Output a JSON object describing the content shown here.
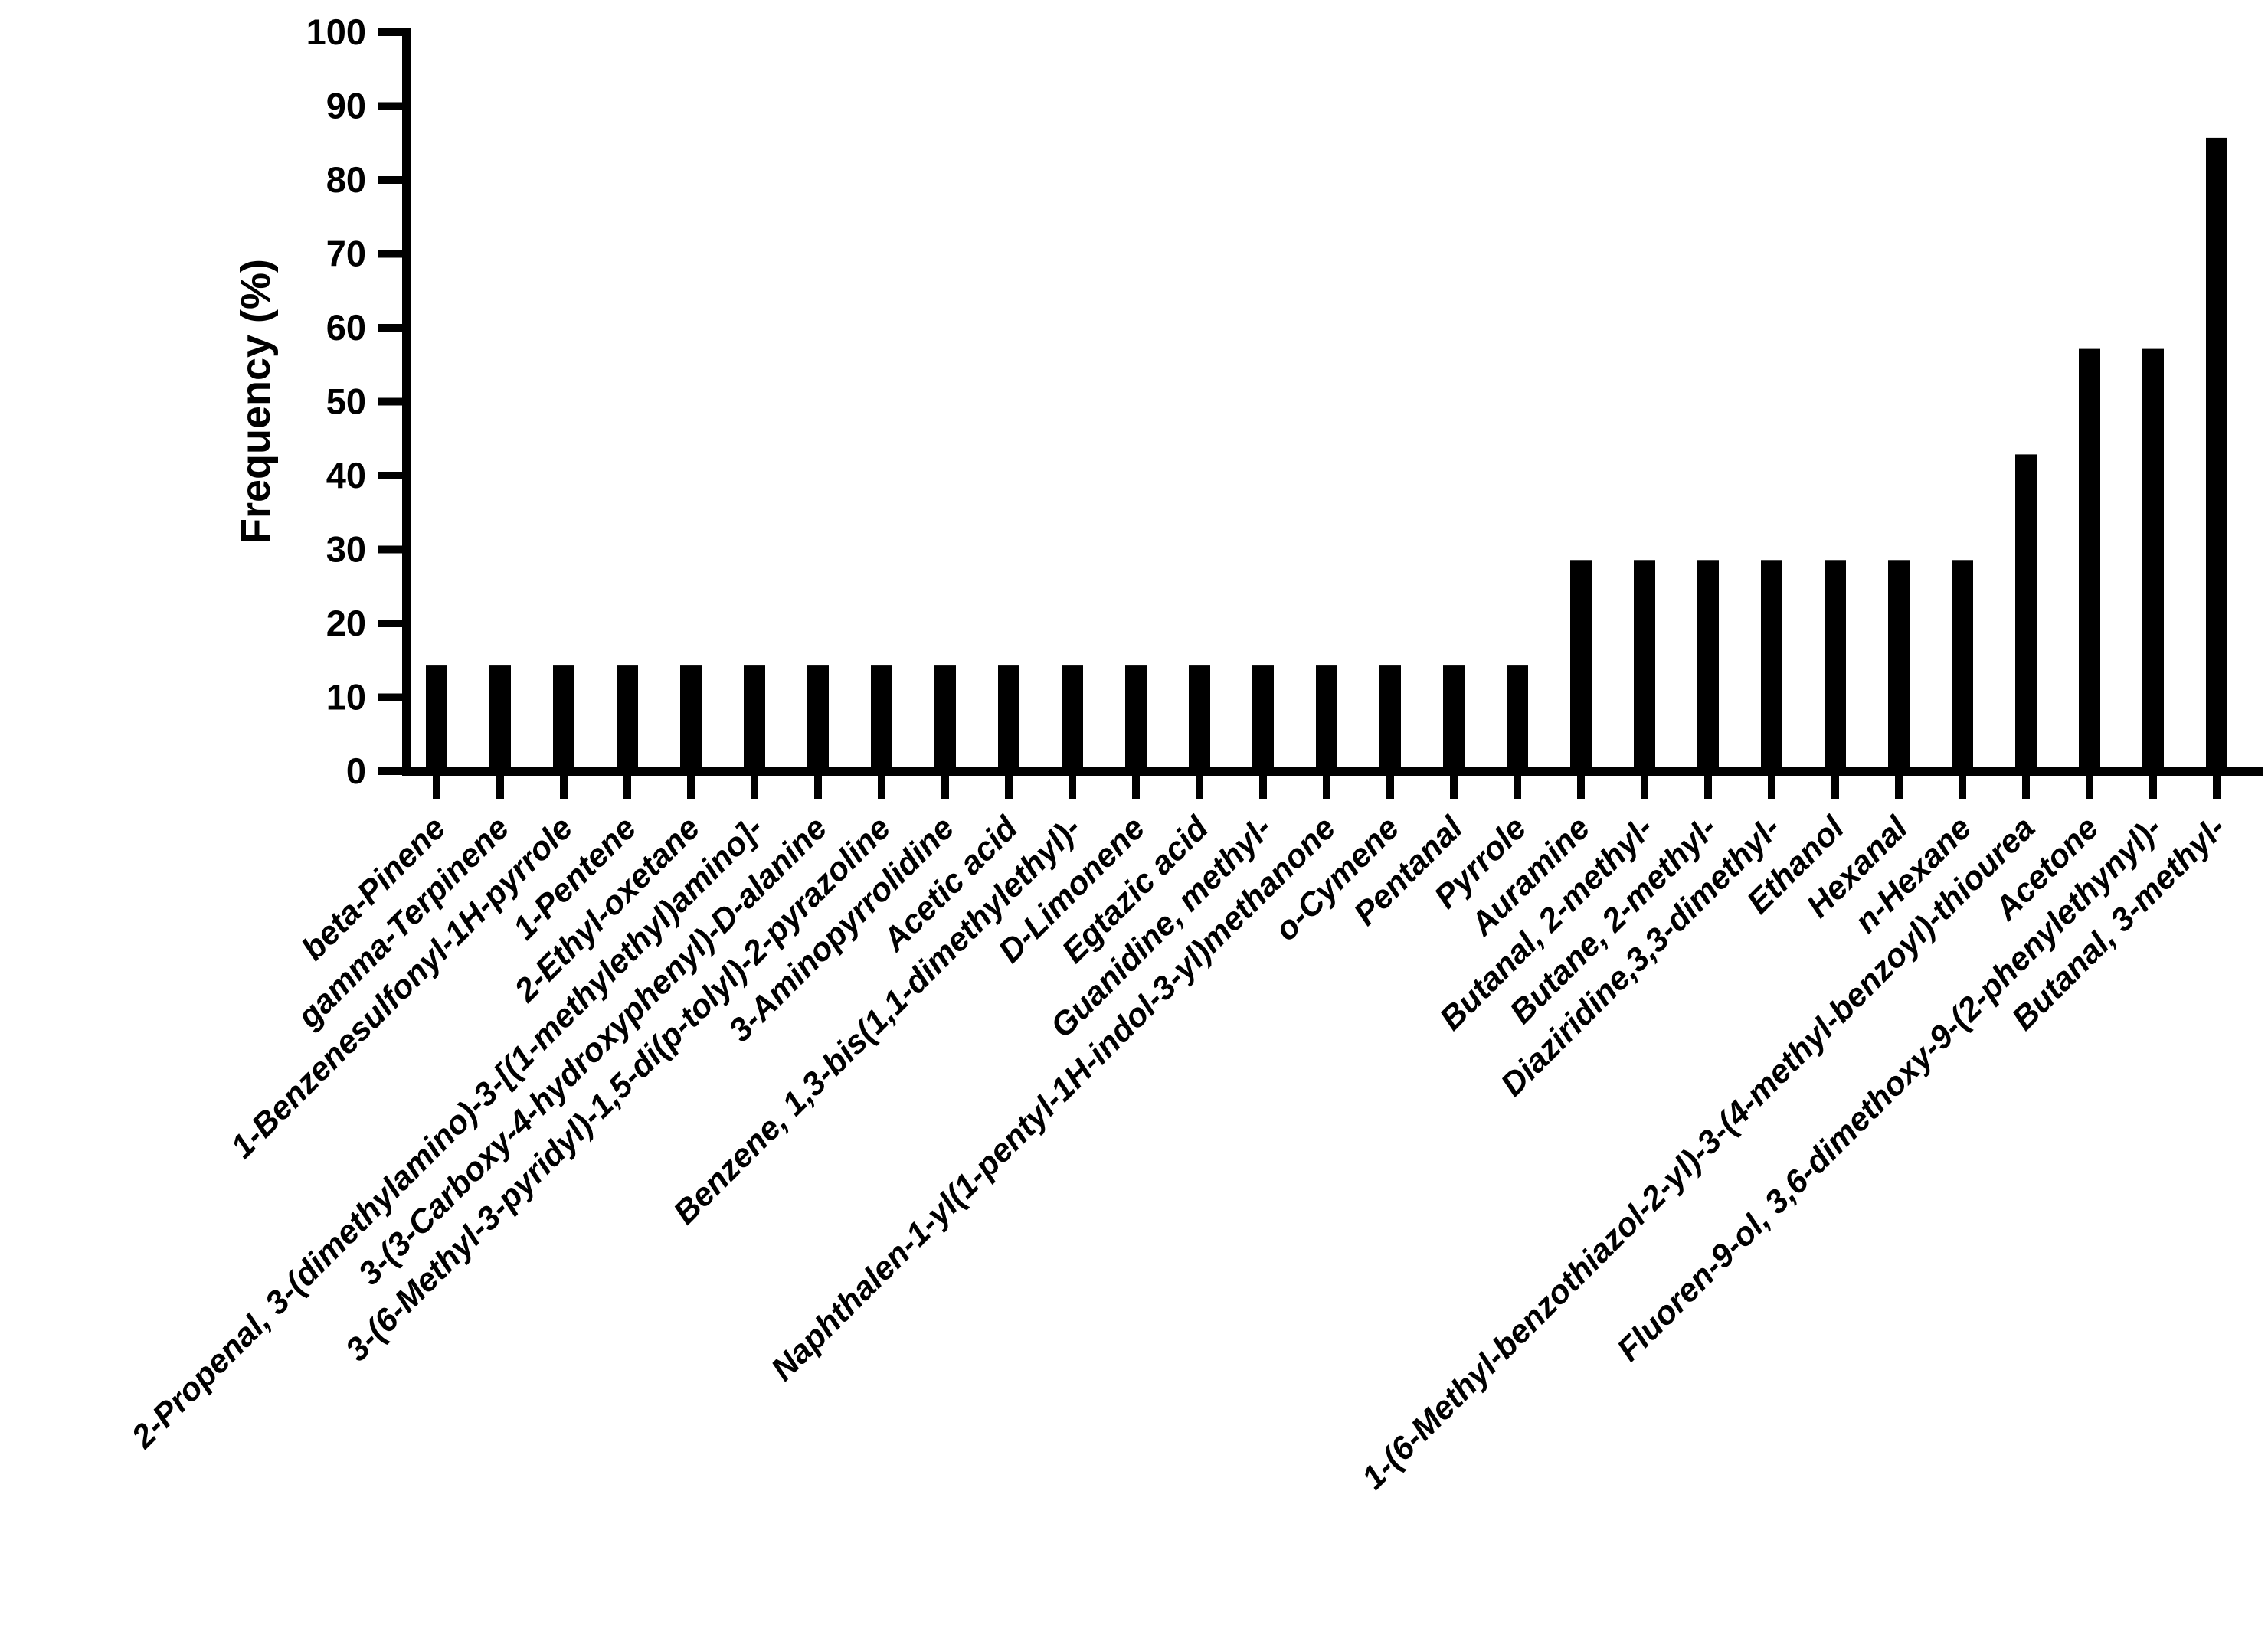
{
  "figure": {
    "background_color": "#ffffff",
    "ink_color": "#000000"
  },
  "chart_data": {
    "type": "bar",
    "title": "",
    "xlabel": "",
    "ylabel": "Frequency (%)",
    "ylim": [
      0,
      100
    ],
    "yticks": [
      0,
      10,
      20,
      30,
      40,
      50,
      60,
      70,
      80,
      90,
      100
    ],
    "grid": false,
    "legend_position": "none",
    "bar_color": "#000000",
    "categories": [
      "beta-Pinene",
      "gamma-Terpinene",
      "1-Benzenesulfonyl-1H-pyrrole",
      "1-Pentene",
      "2-Ethyl-oxetane",
      "2-Propenal, 3-(dimethylamino)-3-[(1-methylethyl)amino]-",
      "3-(3-Carboxy-4-hydroxyphenyl)-D-alanine",
      "3-(6-Methyl-3-pyridyl)-1,5-di(p-tolyl)-2-pyrazoline",
      "3-Aminopyrrolidine",
      "Acetic acid",
      "Benzene, 1,3-bis(1,1-dimethylethyl)-",
      "D-Limonene",
      "Egtazic acid",
      "Guanidine, methyl-",
      "Naphthalen-1-yl(1-pentyl-1H-indol-3-yl)methanone",
      "o-Cymene",
      "Pentanal",
      "Pyrrole",
      "Auramine",
      "Butanal, 2-methyl-",
      "Butane, 2-methyl-",
      "Diaziridine,3,3-dimethyl-",
      "Ethanol",
      "Hexanal",
      "n-Hexane",
      "1-(6-Methyl-benzothiazol-2-yl)-3-(4-methyl-benzoyl)-thiourea",
      "Acetone",
      "Fluoren-9-ol, 3,6-dimethoxy-9-(2-phenylethynyl)-",
      "Butanal, 3-methyl-"
    ],
    "values": [
      14.29,
      14.29,
      14.29,
      14.29,
      14.29,
      14.29,
      14.29,
      14.29,
      14.29,
      14.29,
      14.29,
      14.29,
      14.29,
      14.29,
      14.29,
      14.29,
      14.29,
      14.29,
      28.57,
      28.57,
      28.57,
      28.57,
      28.57,
      28.57,
      28.57,
      42.86,
      57.14,
      57.14,
      85.71
    ]
  }
}
